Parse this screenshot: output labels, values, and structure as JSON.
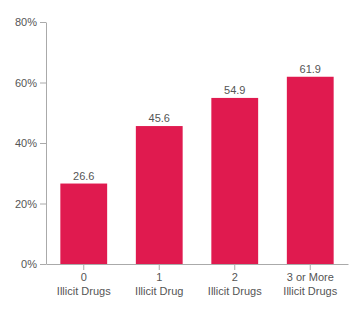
{
  "chart_data": {
    "type": "bar",
    "categories": [
      "0\nIllicit Drugs",
      "1\nIllicit Drug",
      "2\nIllicit Drugs",
      "3 or More\nIllicit Drugs"
    ],
    "values": [
      26.6,
      45.6,
      54.9,
      61.9
    ],
    "color": "#e01a4f",
    "ylim": [
      0,
      80
    ],
    "yticks": [
      {
        "value": 0,
        "label": "0%"
      },
      {
        "value": 20,
        "label": "20%"
      },
      {
        "value": 40,
        "label": "40%"
      },
      {
        "value": 60,
        "label": "60%"
      },
      {
        "value": 80,
        "label": "80%"
      }
    ],
    "data_labels": true,
    "grid": false
  }
}
